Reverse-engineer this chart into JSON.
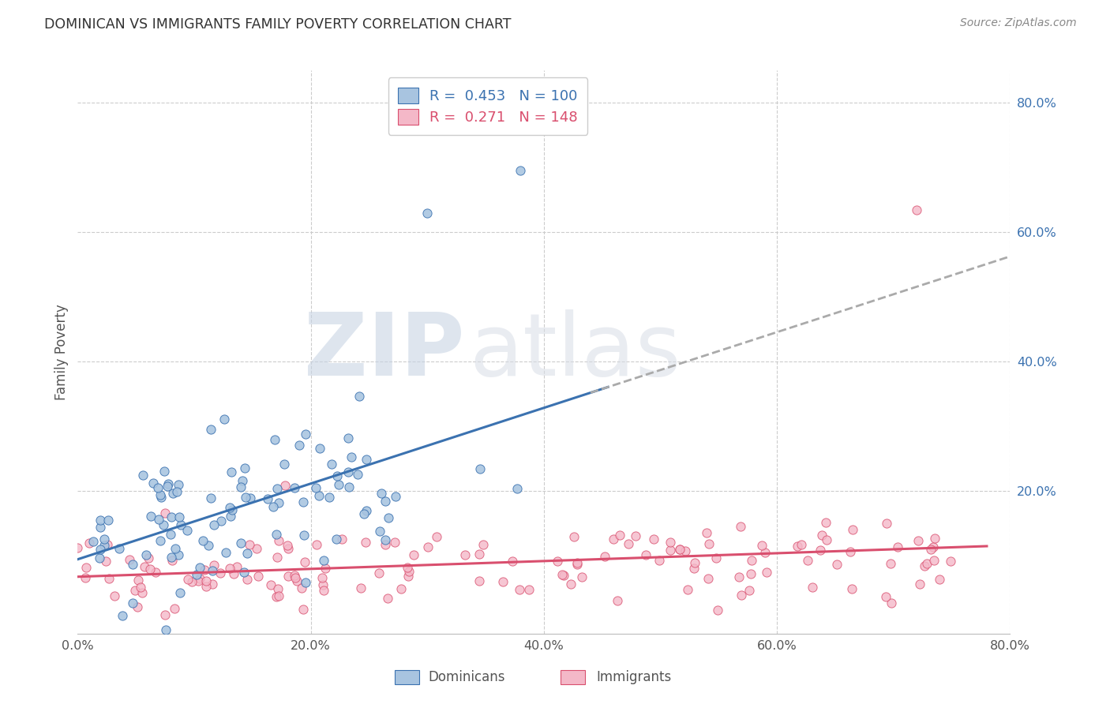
{
  "title": "DOMINICAN VS IMMIGRANTS FAMILY POVERTY CORRELATION CHART",
  "source": "Source: ZipAtlas.com",
  "ylabel": "Family Poverty",
  "xlim": [
    0,
    0.8
  ],
  "ylim": [
    -0.02,
    0.85
  ],
  "xtick_labels": [
    "0.0%",
    "20.0%",
    "40.0%",
    "60.0%",
    "80.0%"
  ],
  "xtick_values": [
    0,
    0.2,
    0.4,
    0.6,
    0.8
  ],
  "ytick_labels": [
    "20.0%",
    "40.0%",
    "60.0%",
    "80.0%"
  ],
  "ytick_values": [
    0.2,
    0.4,
    0.6,
    0.8
  ],
  "dominicans_fill": "#a8c4e0",
  "dominicans_edge": "#3b72b0",
  "immigrants_fill": "#f4b8c8",
  "immigrants_edge": "#d94f6e",
  "dominicans_line_color": "#3b72b0",
  "immigrants_line_color": "#d94f6e",
  "dashed_line_color": "#aaaaaa",
  "watermark_zip": "ZIP",
  "watermark_atlas": "atlas",
  "watermark_color": "#d5dde8",
  "background_color": "#ffffff",
  "grid_color": "#cccccc",
  "title_color": "#333333",
  "source_color": "#888888",
  "axis_label_color": "#555555",
  "tick_color": "#555555",
  "right_tick_color": "#3b72b0",
  "legend_text_color_1": "#3b72b0",
  "legend_text_color_2": "#d94f6e",
  "bottom_legend_color": "#555555"
}
